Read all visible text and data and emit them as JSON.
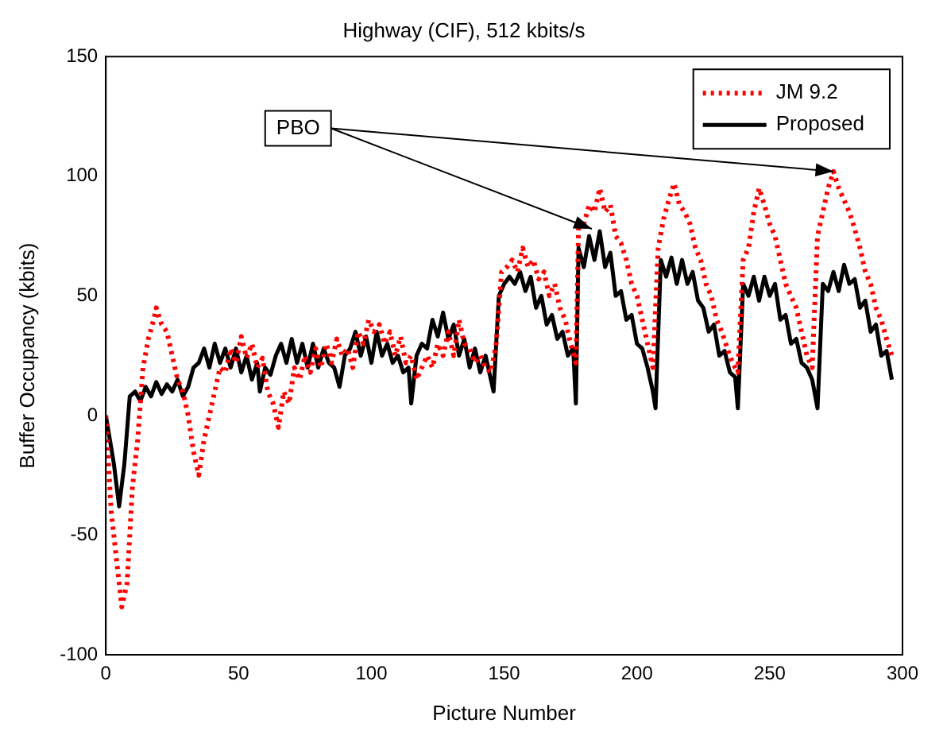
{
  "chart_data": {
    "type": "line",
    "title": "Highway (CIF), 512 kbits/s",
    "xlabel": "Picture Number",
    "ylabel": "Buffer Occupancy (kbits)",
    "xlim": [
      0,
      300
    ],
    "xticks": [
      0,
      50,
      100,
      150,
      200,
      250,
      300
    ],
    "ylim": [
      -100,
      150
    ],
    "yticks": [
      -100,
      -50,
      0,
      50,
      100,
      150
    ],
    "grid": false,
    "legend": "top right",
    "marker": "none",
    "annotations": [
      {
        "text": "PBO",
        "x": 183,
        "y": 78
      }
    ],
    "series": [
      {
        "name": "JM 9.2",
        "color": "#ff0000",
        "line_style": "dotted",
        "x": [
          0,
          2,
          4,
          6,
          8,
          10,
          12,
          14,
          16,
          18,
          19,
          21,
          23,
          25,
          27,
          29,
          31,
          33,
          35,
          37,
          39,
          41,
          43,
          45,
          47,
          49,
          51,
          53,
          55,
          57,
          59,
          61,
          63,
          65,
          67,
          69,
          71,
          73,
          75,
          77,
          79,
          81,
          83,
          85,
          87,
          89,
          91,
          93,
          95,
          97,
          99,
          101,
          103,
          105,
          107,
          109,
          111,
          113,
          115,
          117,
          119,
          121,
          123,
          125,
          127,
          129,
          131,
          133,
          135,
          137,
          139,
          141,
          143,
          145,
          147,
          149,
          151,
          153,
          155,
          157,
          159,
          161,
          163,
          165,
          167,
          169,
          171,
          173,
          175,
          177,
          178,
          180,
          182,
          184,
          186,
          188,
          190,
          192,
          194,
          196,
          198,
          200,
          202,
          204,
          206,
          208,
          210,
          212,
          214,
          216,
          218,
          220,
          222,
          224,
          226,
          228,
          230,
          232,
          234,
          236,
          238,
          240,
          242,
          244,
          246,
          248,
          250,
          252,
          254,
          256,
          258,
          260,
          262,
          264,
          266,
          268,
          270,
          272,
          274,
          276,
          278,
          280,
          282,
          284,
          286,
          288,
          290,
          292,
          294,
          296
        ],
        "values": [
          0,
          -40,
          -60,
          -80,
          -70,
          -30,
          -10,
          20,
          32,
          40,
          45,
          38,
          35,
          25,
          15,
          10,
          0,
          -15,
          -25,
          -10,
          0,
          10,
          20,
          18,
          28,
          22,
          33,
          24,
          30,
          20,
          24,
          10,
          5,
          -5,
          10,
          5,
          20,
          15,
          25,
          18,
          28,
          20,
          30,
          22,
          32,
          25,
          28,
          20,
          35,
          30,
          40,
          35,
          38,
          30,
          35,
          25,
          33,
          22,
          25,
          15,
          20,
          25,
          20,
          30,
          25,
          35,
          25,
          40,
          30,
          28,
          22,
          25,
          20,
          18,
          30,
          60,
          62,
          65,
          60,
          70,
          62,
          65,
          57,
          60,
          50,
          55,
          45,
          40,
          30,
          22,
          78,
          80,
          88,
          85,
          95,
          85,
          88,
          75,
          72,
          65,
          55,
          50,
          40,
          30,
          20,
          70,
          82,
          90,
          97,
          88,
          85,
          80,
          70,
          65,
          55,
          50,
          40,
          35,
          28,
          22,
          18,
          65,
          70,
          85,
          95,
          88,
          80,
          75,
          65,
          55,
          50,
          45,
          35,
          25,
          20,
          75,
          85,
          95,
          102,
          95,
          90,
          85,
          78,
          70,
          60,
          55,
          45,
          40,
          32,
          25
        ]
      },
      {
        "name": "Proposed",
        "color": "#000000",
        "line_style": "solid",
        "x": [
          0,
          3,
          5,
          7,
          9,
          11,
          13,
          15,
          17,
          19,
          21,
          23,
          25,
          27,
          29,
          31,
          33,
          35,
          37,
          39,
          41,
          43,
          45,
          47,
          49,
          51,
          53,
          55,
          57,
          58,
          60,
          62,
          64,
          66,
          68,
          70,
          72,
          74,
          76,
          78,
          80,
          82,
          84,
          86,
          88,
          90,
          92,
          94,
          96,
          98,
          100,
          102,
          104,
          106,
          108,
          110,
          112,
          114,
          115,
          117,
          119,
          121,
          123,
          125,
          127,
          129,
          131,
          133,
          135,
          137,
          139,
          141,
          143,
          145,
          146,
          148,
          150,
          152,
          154,
          156,
          158,
          160,
          162,
          164,
          166,
          168,
          170,
          172,
          174,
          176,
          177,
          178,
          180,
          182,
          184,
          186,
          188,
          190,
          192,
          194,
          196,
          198,
          200,
          202,
          204,
          206,
          207,
          209,
          211,
          213,
          215,
          217,
          219,
          221,
          223,
          225,
          227,
          229,
          231,
          233,
          235,
          237,
          238,
          240,
          242,
          244,
          246,
          248,
          250,
          252,
          254,
          256,
          258,
          260,
          262,
          264,
          266,
          268,
          270,
          272,
          274,
          276,
          278,
          280,
          282,
          284,
          286,
          288,
          290,
          292,
          294,
          296
        ],
        "values": [
          0,
          -20,
          -38,
          -20,
          8,
          10,
          6,
          12,
          8,
          14,
          9,
          13,
          10,
          15,
          8,
          12,
          20,
          22,
          28,
          20,
          30,
          22,
          28,
          20,
          28,
          18,
          25,
          15,
          22,
          10,
          20,
          17,
          25,
          30,
          22,
          32,
          22,
          30,
          20,
          30,
          20,
          28,
          22,
          20,
          12,
          25,
          28,
          35,
          25,
          33,
          22,
          35,
          25,
          30,
          22,
          25,
          18,
          20,
          5,
          25,
          30,
          28,
          40,
          33,
          43,
          32,
          38,
          25,
          32,
          20,
          28,
          18,
          25,
          15,
          10,
          50,
          55,
          58,
          55,
          60,
          52,
          58,
          45,
          50,
          38,
          42,
          32,
          35,
          25,
          28,
          5,
          70,
          62,
          75,
          65,
          77,
          62,
          68,
          50,
          52,
          40,
          42,
          30,
          28,
          20,
          10,
          3,
          65,
          58,
          66,
          55,
          65,
          55,
          60,
          48,
          45,
          35,
          38,
          25,
          27,
          18,
          16,
          3,
          55,
          50,
          58,
          48,
          58,
          50,
          55,
          40,
          42,
          30,
          32,
          22,
          20,
          15,
          3,
          55,
          52,
          60,
          52,
          63,
          55,
          57,
          45,
          48,
          35,
          38,
          25,
          27,
          15
        ]
      }
    ]
  }
}
